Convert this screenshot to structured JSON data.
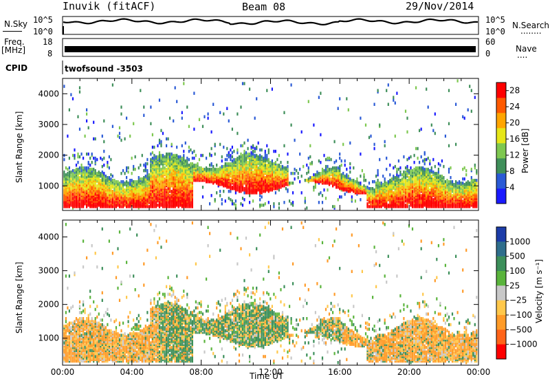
{
  "header": {
    "station": "Inuvik (fitACF)",
    "beam": "Beam 08",
    "date": "29/Nov/2014"
  },
  "strip_panels": {
    "nsky_label": "N.Sky",
    "nsky_ticks": [
      "10^5",
      "10^0"
    ],
    "nsearch_label": "N.Search",
    "nsearch_dots": "........",
    "nsearch_ticks": [
      "10^5",
      "10^0"
    ],
    "freq_label": "Freq.",
    "freq_unit": "[MHz]",
    "freq_ticks": [
      "18",
      "8"
    ],
    "nave_label": "Nave",
    "nave_dots": "....",
    "nave_ticks": [
      "60",
      "0"
    ],
    "cpid_label": "CPID",
    "cpid_value": "twofsound -3503"
  },
  "chart_data": [
    {
      "type": "heatmap",
      "panel": "power",
      "ylabel": "Slant Range [km]",
      "y_ticks": [
        "1000",
        "2000",
        "3000",
        "4000"
      ],
      "ylim": [
        200,
        4500
      ],
      "x_ticks": [
        "00:00",
        "04:00",
        "08:00",
        "12:00",
        "16:00",
        "20:00",
        "00:00"
      ],
      "xlim_hours": [
        0,
        24
      ],
      "colorbar_label": "Power [dB]",
      "colorbar_ticks": [
        "4",
        "8",
        "12",
        "16",
        "20",
        "24",
        "28"
      ],
      "colorbar_range": [
        0,
        30
      ],
      "colorbar_colors": [
        "#1a1aff",
        "#2a5ad6",
        "#3f8f5a",
        "#7ec850",
        "#e6e619",
        "#ffa500",
        "#ff5a00",
        "#ff0000"
      ]
    },
    {
      "type": "heatmap",
      "panel": "velocity",
      "ylabel": "Slant Range [km]",
      "y_ticks": [
        "1000",
        "2000",
        "3000",
        "4000"
      ],
      "ylim": [
        200,
        4500
      ],
      "x_ticks": [
        "00:00",
        "04:00",
        "08:00",
        "12:00",
        "16:00",
        "20:00",
        "00:00"
      ],
      "xlim_hours": [
        0,
        24
      ],
      "xlabel": "Time UT",
      "colorbar_label": "Velocity [m s⁻¹]",
      "colorbar_ticks": [
        "1000",
        "500",
        "100",
        "25",
        "−25",
        "−100",
        "−500",
        "−1000"
      ],
      "colorbar_colors": [
        "#1c3ca8",
        "#2f6e8c",
        "#3c8f5a",
        "#5ab43c",
        "#c8c8c8",
        "#ffc84b",
        "#ff9b28",
        "#ff6419",
        "#ff0000"
      ]
    }
  ]
}
